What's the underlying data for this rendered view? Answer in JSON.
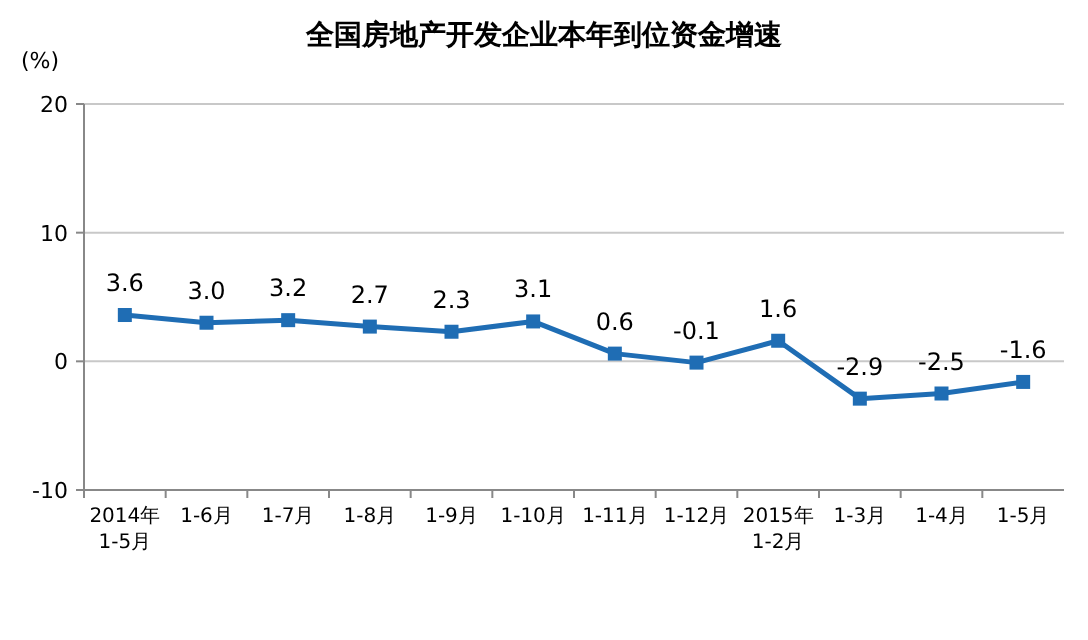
{
  "chart_data": {
    "type": "line",
    "title": "全国房地产开发企业本年到位资金增速",
    "ylabel": "(%)",
    "categories": [
      "2014年\n1-5月",
      "1-6月",
      "1-7月",
      "1-8月",
      "1-9月",
      "1-10月",
      "1-11月",
      "1-12月",
      "2015年\n1-2月",
      "1-3月",
      "1-4月",
      "1-5月"
    ],
    "series": [
      {
        "color": "#1f6db4",
        "values": [
          3.6,
          3.0,
          3.2,
          2.7,
          2.3,
          3.1,
          0.6,
          -0.1,
          1.6,
          -2.9,
          -2.5,
          -1.6
        ],
        "value_labels": [
          "3.6",
          "3.0",
          "3.2",
          "2.7",
          "2.3",
          "3.1",
          "0.6",
          "-0.1",
          "1.6",
          "-2.9",
          "-2.5",
          "-1.6"
        ]
      }
    ],
    "ylim": [
      -10,
      20
    ],
    "yticks": [
      -10,
      0,
      10,
      20
    ],
    "grid": "y",
    "marker": "square",
    "line_style": "solid"
  }
}
